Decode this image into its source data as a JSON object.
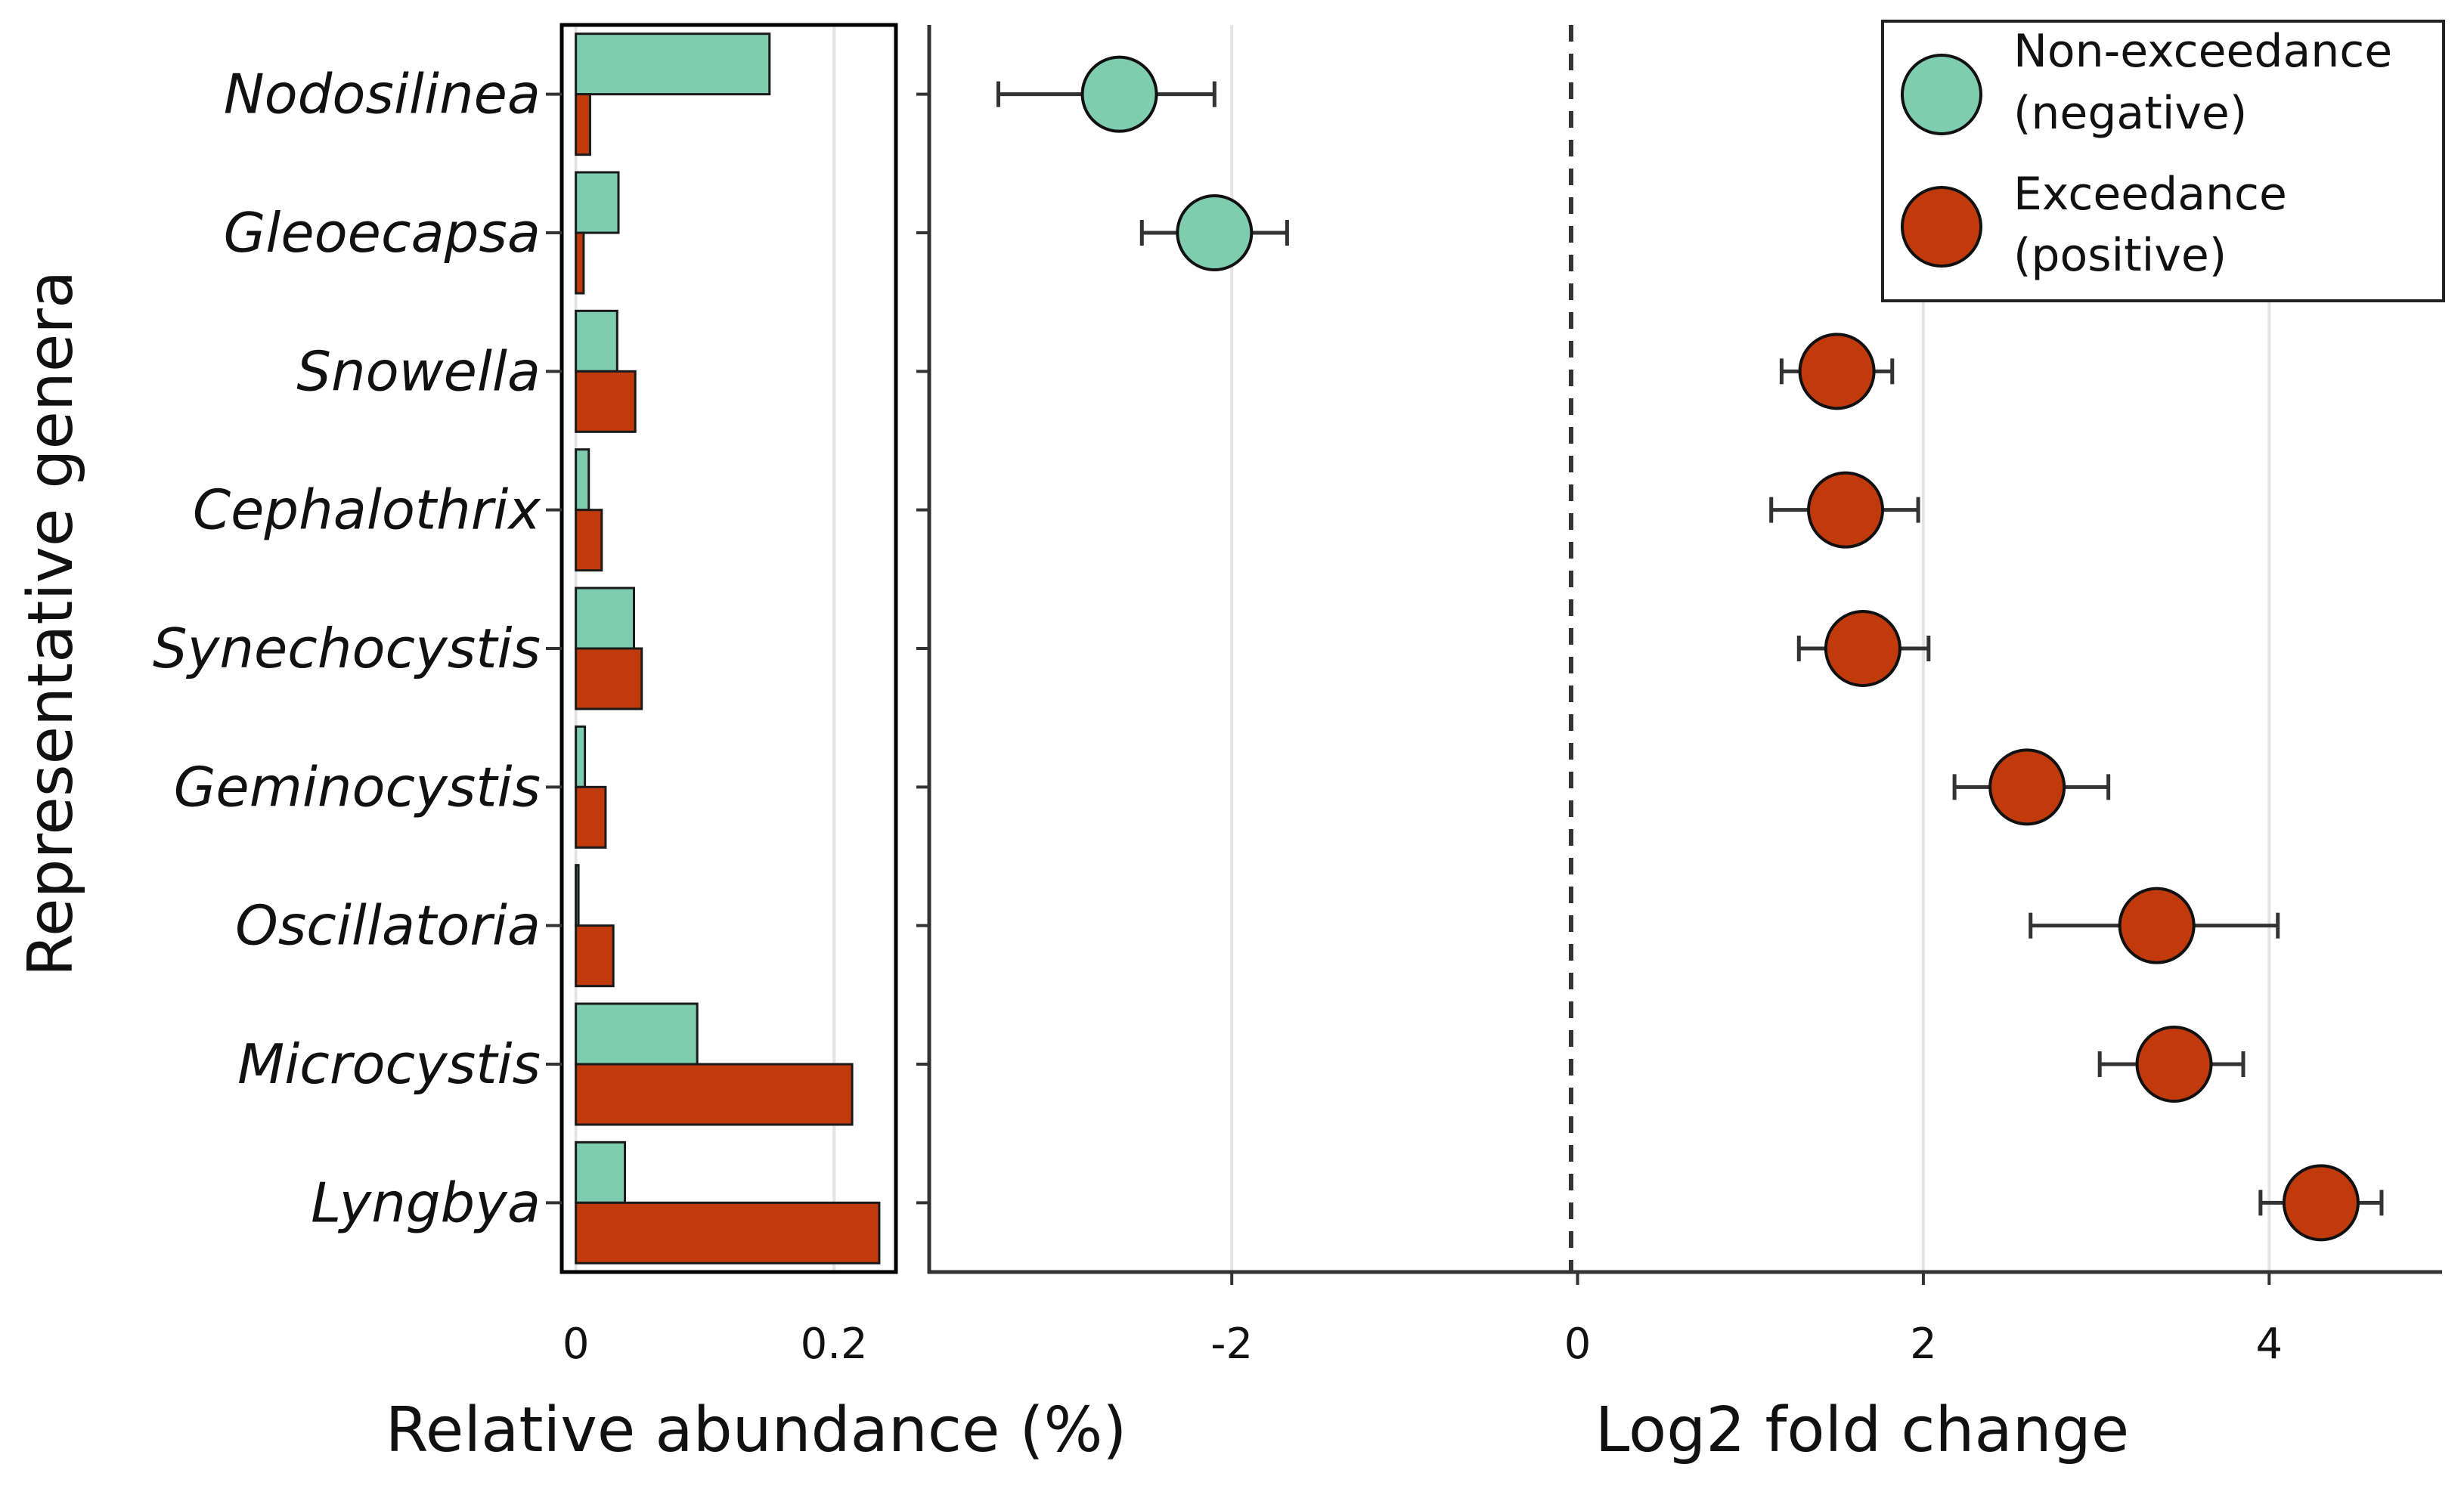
{
  "chart_data": [
    {
      "type": "bar",
      "orientation": "horizontal",
      "categories": [
        "Nodosilinea",
        "Gleoecapsa",
        "Snowella",
        "Cephalothrix",
        "Synechocystis",
        "Geminocystis",
        "Oscillatoria",
        "Microcystis",
        "Lyngbya"
      ],
      "series": [
        {
          "name": "Non-exceedance (negative)",
          "color": "#7ecdb0",
          "values": [
            0.15,
            0.033,
            0.032,
            0.01,
            0.045,
            0.007,
            0.002,
            0.094,
            0.038
          ]
        },
        {
          "name": "Exceedance (positive)",
          "color": "#c03a0c",
          "values": [
            0.011,
            0.006,
            0.046,
            0.02,
            0.051,
            0.023,
            0.029,
            0.214,
            0.235
          ]
        }
      ],
      "xlabel": "Relative abundance (%)",
      "ylabel": "Representative genera",
      "xlim": [
        -0.008,
        0.245
      ],
      "xticks": [
        0,
        0.2
      ],
      "xtick_labels": [
        "0",
        "0.2"
      ]
    },
    {
      "type": "scatter",
      "categories": [
        "Nodosilinea",
        "Gleoecapsa",
        "Snowella",
        "Cephalothrix",
        "Synechocystis",
        "Geminocystis",
        "Oscillatoria",
        "Microcystis",
        "Lyngbya"
      ],
      "values": [
        -2.65,
        -2.1,
        1.5,
        1.55,
        1.65,
        2.6,
        3.35,
        3.45,
        4.3
      ],
      "error_low": [
        -3.35,
        -2.52,
        1.18,
        1.12,
        1.28,
        2.18,
        2.62,
        3.02,
        3.95
      ],
      "error_high": [
        -2.1,
        -1.68,
        1.82,
        1.97,
        2.03,
        3.07,
        4.05,
        3.85,
        4.65
      ],
      "groups": [
        "negative",
        "negative",
        "positive",
        "positive",
        "positive",
        "positive",
        "positive",
        "positive",
        "positive"
      ],
      "xlabel": "Log2 fold change",
      "xlim": [
        -3.75,
        5.0
      ],
      "xticks": [
        -2,
        0,
        2,
        4
      ],
      "xtick_labels": [
        "-2",
        "0",
        "2",
        "4"
      ],
      "reference_line": 0,
      "grid": "vertical",
      "legend": {
        "position": "top-right",
        "entries": [
          {
            "line1": "Non-exceedance",
            "line2": "(negative)",
            "color": "#7ecdb0"
          },
          {
            "line1": "Exceedance",
            "line2": "(positive)",
            "color": "#c03a0c"
          }
        ]
      }
    }
  ]
}
